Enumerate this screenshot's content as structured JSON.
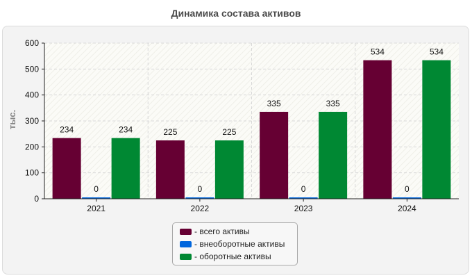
{
  "chart_data": {
    "type": "bar",
    "title": "Динамика состава активов",
    "ylabel": "тыс.",
    "xlabel": "",
    "ylim": [
      0,
      600
    ],
    "yticks": [
      0,
      100,
      200,
      300,
      400,
      500,
      600
    ],
    "categories": [
      "2021",
      "2022",
      "2023",
      "2024"
    ],
    "series": [
      {
        "name": "- всего активы",
        "color": "#660033",
        "values": [
          234,
          225,
          335,
          534
        ]
      },
      {
        "name": "- внеоборотные активы",
        "color": "#0066dd",
        "values": [
          0,
          0,
          0,
          0
        ]
      },
      {
        "name": "- оборотные активы",
        "color": "#008833",
        "values": [
          234,
          225,
          335,
          534
        ]
      }
    ],
    "legend_position": "bottom-center",
    "grid": true
  }
}
